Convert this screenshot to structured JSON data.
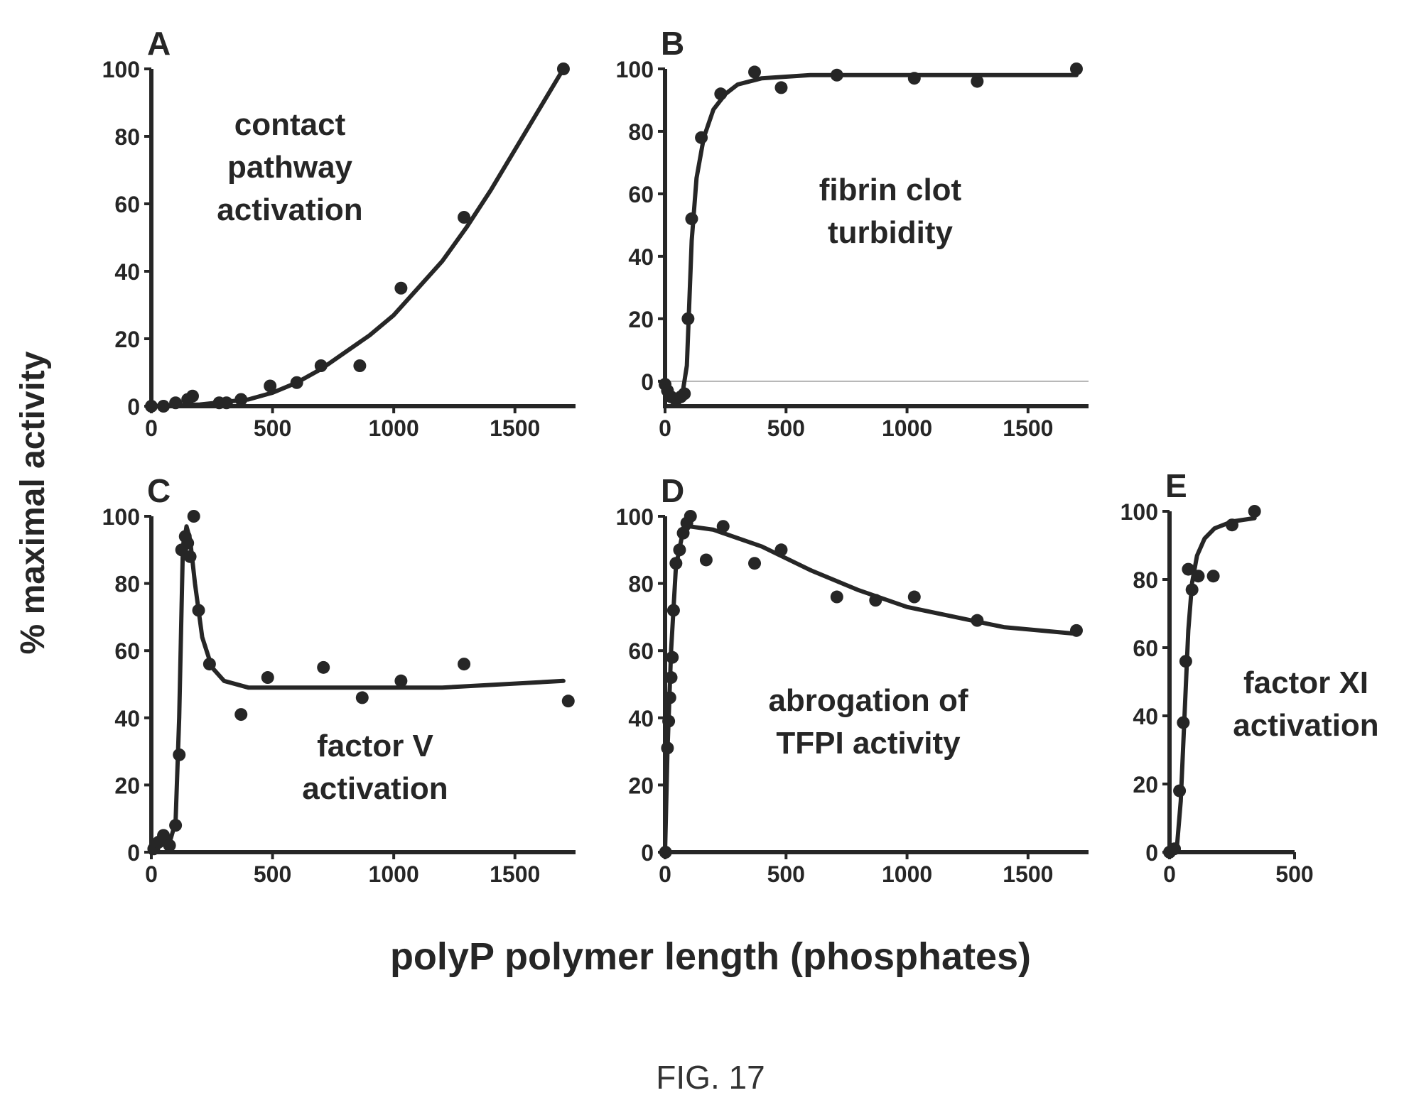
{
  "figure": {
    "caption": "FIG. 17",
    "ylabel": "% maximal activity",
    "xlabel": "polyP polymer length (phosphates)"
  },
  "colors": {
    "ink": "#262626",
    "zero_line": "#9a9a9a",
    "caption": "#333333"
  },
  "chart_data": [
    {
      "panel": "A",
      "type": "scatter",
      "annotation": [
        "contact",
        "pathway",
        "activation"
      ],
      "xlim": [
        0,
        1750
      ],
      "ylim": [
        0,
        100
      ],
      "xticks": [
        0,
        500,
        1000,
        1500
      ],
      "yticks": [
        0,
        20,
        40,
        60,
        80,
        100
      ],
      "points": [
        [
          0,
          0
        ],
        [
          50,
          0
        ],
        [
          100,
          1
        ],
        [
          150,
          2
        ],
        [
          170,
          3
        ],
        [
          280,
          1
        ],
        [
          310,
          1
        ],
        [
          370,
          2
        ],
        [
          490,
          6
        ],
        [
          600,
          7
        ],
        [
          700,
          12
        ],
        [
          860,
          12
        ],
        [
          1030,
          35
        ],
        [
          1290,
          56
        ],
        [
          1700,
          100
        ]
      ],
      "fit": [
        [
          0,
          0
        ],
        [
          200,
          0.5
        ],
        [
          400,
          2
        ],
        [
          500,
          4
        ],
        [
          600,
          7
        ],
        [
          700,
          11
        ],
        [
          800,
          16
        ],
        [
          900,
          21
        ],
        [
          1000,
          27
        ],
        [
          1100,
          35
        ],
        [
          1200,
          43
        ],
        [
          1300,
          53
        ],
        [
          1400,
          64
        ],
        [
          1500,
          76
        ],
        [
          1600,
          88
        ],
        [
          1700,
          100
        ]
      ]
    },
    {
      "panel": "B",
      "type": "scatter",
      "annotation": [
        "fibrin clot",
        "turbidity"
      ],
      "xlim": [
        0,
        1750
      ],
      "ylim": [
        -8,
        100
      ],
      "xticks": [
        0,
        500,
        1000,
        1500
      ],
      "yticks": [
        0,
        20,
        40,
        60,
        80,
        100
      ],
      "zero_line": true,
      "points": [
        [
          0,
          -1
        ],
        [
          10,
          -3
        ],
        [
          25,
          -5
        ],
        [
          45,
          -6
        ],
        [
          65,
          -5
        ],
        [
          80,
          -4
        ],
        [
          95,
          20
        ],
        [
          110,
          52
        ],
        [
          150,
          78
        ],
        [
          230,
          92
        ],
        [
          370,
          99
        ],
        [
          480,
          94
        ],
        [
          710,
          98
        ],
        [
          1030,
          97
        ],
        [
          1290,
          96
        ],
        [
          1700,
          100
        ]
      ],
      "fit": [
        [
          0,
          -3
        ],
        [
          40,
          -5
        ],
        [
          70,
          -5
        ],
        [
          90,
          5
        ],
        [
          110,
          45
        ],
        [
          130,
          65
        ],
        [
          160,
          78
        ],
        [
          200,
          87
        ],
        [
          250,
          92
        ],
        [
          300,
          95
        ],
        [
          400,
          97
        ],
        [
          600,
          98
        ],
        [
          1000,
          98
        ],
        [
          1700,
          98
        ]
      ]
    },
    {
      "panel": "C",
      "type": "scatter",
      "annotation": [
        "factor V",
        "activation"
      ],
      "xlim": [
        0,
        1750
      ],
      "ylim": [
        0,
        100
      ],
      "xticks": [
        0,
        500,
        1000,
        1500
      ],
      "yticks": [
        0,
        20,
        40,
        60,
        80,
        100
      ],
      "points": [
        [
          10,
          1
        ],
        [
          30,
          3
        ],
        [
          50,
          5
        ],
        [
          75,
          2
        ],
        [
          100,
          8
        ],
        [
          115,
          29
        ],
        [
          125,
          90
        ],
        [
          140,
          94
        ],
        [
          150,
          92
        ],
        [
          160,
          88
        ],
        [
          175,
          100
        ],
        [
          195,
          72
        ],
        [
          240,
          56
        ],
        [
          370,
          41
        ],
        [
          480,
          52
        ],
        [
          710,
          55
        ],
        [
          870,
          46
        ],
        [
          1030,
          51
        ],
        [
          1290,
          56
        ],
        [
          1720,
          45
        ]
      ],
      "fit": [
        [
          0,
          0
        ],
        [
          80,
          4
        ],
        [
          100,
          9
        ],
        [
          115,
          40
        ],
        [
          130,
          90
        ],
        [
          145,
          97
        ],
        [
          160,
          93
        ],
        [
          180,
          80
        ],
        [
          210,
          64
        ],
        [
          250,
          55
        ],
        [
          300,
          51
        ],
        [
          400,
          49
        ],
        [
          800,
          49
        ],
        [
          1200,
          49
        ],
        [
          1700,
          51
        ]
      ]
    },
    {
      "panel": "D",
      "type": "scatter",
      "annotation": [
        "abrogation of",
        "TFPI activity"
      ],
      "xlim": [
        0,
        1750
      ],
      "ylim": [
        0,
        100
      ],
      "xticks": [
        0,
        500,
        1000,
        1500
      ],
      "yticks": [
        0,
        20,
        40,
        60,
        80,
        100
      ],
      "points": [
        [
          2,
          0
        ],
        [
          10,
          31
        ],
        [
          15,
          39
        ],
        [
          20,
          46
        ],
        [
          25,
          52
        ],
        [
          30,
          58
        ],
        [
          35,
          72
        ],
        [
          45,
          86
        ],
        [
          60,
          90
        ],
        [
          75,
          95
        ],
        [
          90,
          98
        ],
        [
          105,
          100
        ],
        [
          170,
          87
        ],
        [
          240,
          97
        ],
        [
          370,
          86
        ],
        [
          480,
          90
        ],
        [
          710,
          76
        ],
        [
          870,
          75
        ],
        [
          1030,
          76
        ],
        [
          1290,
          69
        ],
        [
          1700,
          66
        ]
      ],
      "fit": [
        [
          0,
          0
        ],
        [
          10,
          30
        ],
        [
          25,
          60
        ],
        [
          45,
          85
        ],
        [
          70,
          94
        ],
        [
          100,
          97
        ],
        [
          200,
          96
        ],
        [
          400,
          91
        ],
        [
          600,
          84
        ],
        [
          800,
          78
        ],
        [
          1000,
          73
        ],
        [
          1200,
          70
        ],
        [
          1400,
          67
        ],
        [
          1700,
          65
        ]
      ]
    },
    {
      "panel": "E",
      "type": "scatter",
      "annotation": [
        "factor XI",
        "activation"
      ],
      "xlim": [
        0,
        500
      ],
      "ylim": [
        0,
        100
      ],
      "xticks": [
        0,
        500
      ],
      "yticks": [
        0,
        20,
        40,
        60,
        80,
        100
      ],
      "points": [
        [
          0,
          0
        ],
        [
          20,
          1
        ],
        [
          40,
          18
        ],
        [
          55,
          38
        ],
        [
          65,
          56
        ],
        [
          75,
          83
        ],
        [
          90,
          77
        ],
        [
          115,
          81
        ],
        [
          175,
          81
        ],
        [
          250,
          96
        ],
        [
          340,
          100
        ]
      ],
      "fit": [
        [
          0,
          0
        ],
        [
          30,
          2
        ],
        [
          45,
          15
        ],
        [
          60,
          40
        ],
        [
          75,
          65
        ],
        [
          90,
          79
        ],
        [
          110,
          87
        ],
        [
          140,
          92
        ],
        [
          180,
          95
        ],
        [
          250,
          97
        ],
        [
          340,
          98
        ]
      ]
    }
  ]
}
